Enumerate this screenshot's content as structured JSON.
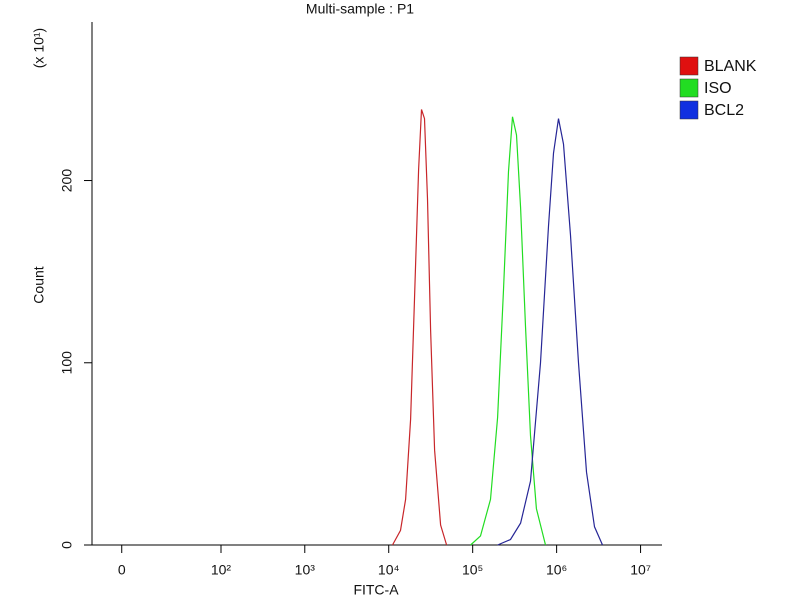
{
  "chart_data": {
    "type": "line",
    "title": "Multi-sample : P1",
    "x_label": "FITC-A",
    "y_label": "Count",
    "y_unit_label": "(x 10¹)",
    "xscale": "biexponential",
    "xlim": [
      -12,
      18000000
    ],
    "xticks": [
      0,
      {
        "value": 100,
        "label": "10²"
      },
      {
        "value": 1000,
        "label": "10³"
      },
      {
        "value": 10000,
        "label": "10⁴"
      },
      {
        "value": 100000,
        "label": "10⁵"
      },
      {
        "value": 1000000,
        "label": "10⁶"
      },
      {
        "value": 10000000,
        "label": "10⁷"
      }
    ],
    "ylim": [
      0,
      287
    ],
    "yticks": [
      0,
      100,
      200
    ],
    "legend": "upper right",
    "series": [
      {
        "name": "BLANK",
        "color": "#c8262a",
        "swatch": "#e01010",
        "x": [
          11100,
          13800,
          15900,
          18200,
          20300,
          22700,
          24600,
          26700,
          29000,
          31500,
          35200,
          41500,
          48900
        ],
        "values": [
          0,
          8,
          25,
          69,
          135,
          206,
          239,
          234,
          190,
          118,
          52,
          11,
          0
        ]
      },
      {
        "name": "ISO",
        "color": "#22dd22",
        "swatch": "#22dd22",
        "x": [
          94400,
          124000,
          163000,
          198000,
          233000,
          267000,
          298000,
          333000,
          372000,
          426000,
          489000,
          575000,
          738000
        ],
        "values": [
          0,
          5,
          25,
          70,
          140,
          205,
          235,
          225,
          185,
          120,
          60,
          20,
          0
        ]
      },
      {
        "name": "BCL2",
        "color": "#262696",
        "swatch": "#1030e0",
        "x": [
          198000,
          282000,
          372000,
          489000,
          643000,
          800000,
          918000,
          1052000,
          1208000,
          1462000,
          1820000,
          2270000,
          2825000,
          3516000
        ],
        "values": [
          0,
          3,
          12,
          35,
          100,
          175,
          215,
          234,
          220,
          170,
          100,
          40,
          10,
          0
        ]
      }
    ]
  }
}
